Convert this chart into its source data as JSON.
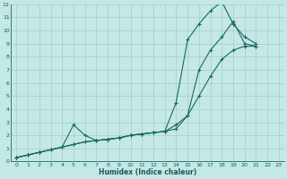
{
  "xlabel": "Humidex (Indice chaleur)",
  "bg_color": "#c5e8e5",
  "grid_color": "#9fcfcc",
  "line_color": "#1a6b60",
  "xlim": [
    -0.5,
    23.5
  ],
  "ylim": [
    0,
    12
  ],
  "xticks": [
    0,
    1,
    2,
    3,
    4,
    5,
    6,
    7,
    8,
    9,
    10,
    11,
    12,
    13,
    14,
    15,
    16,
    17,
    18,
    19,
    20,
    21,
    22,
    23
  ],
  "yticks": [
    0,
    1,
    2,
    3,
    4,
    5,
    6,
    7,
    8,
    9,
    10,
    11,
    12
  ],
  "series": [
    {
      "x": [
        0,
        1,
        2,
        3,
        4,
        5,
        6,
        7,
        8,
        9,
        10,
        11,
        12,
        13,
        14,
        15,
        16,
        17,
        18,
        19,
        20,
        21,
        22,
        23
      ],
      "y": [
        0.3,
        0.5,
        0.7,
        0.9,
        1.1,
        1.3,
        1.5,
        1.6,
        1.7,
        1.8,
        2.0,
        2.1,
        2.2,
        2.3,
        4.5,
        9.3,
        10.5,
        11.5,
        12.2,
        10.5,
        9.5,
        9.0,
        null,
        null
      ]
    },
    {
      "x": [
        0,
        1,
        2,
        3,
        4,
        5,
        6,
        7,
        8,
        9,
        10,
        11,
        12,
        13,
        14,
        15,
        16,
        17,
        18,
        19,
        20,
        21,
        22,
        23
      ],
      "y": [
        0.3,
        0.5,
        0.7,
        0.9,
        1.1,
        2.8,
        2.0,
        1.6,
        1.7,
        1.8,
        2.0,
        2.1,
        2.2,
        2.3,
        2.5,
        3.5,
        7.0,
        8.5,
        9.5,
        10.7,
        9.0,
        8.8,
        null,
        null
      ]
    },
    {
      "x": [
        0,
        1,
        2,
        3,
        4,
        5,
        6,
        7,
        8,
        9,
        10,
        11,
        12,
        13,
        14,
        15,
        16,
        17,
        18,
        19,
        20,
        21,
        22,
        23
      ],
      "y": [
        0.3,
        0.5,
        0.7,
        0.9,
        1.1,
        1.3,
        1.5,
        1.6,
        1.7,
        1.8,
        2.0,
        2.1,
        2.2,
        2.3,
        2.8,
        3.5,
        5.0,
        6.5,
        7.8,
        8.5,
        8.8,
        8.8,
        null,
        null
      ]
    }
  ]
}
